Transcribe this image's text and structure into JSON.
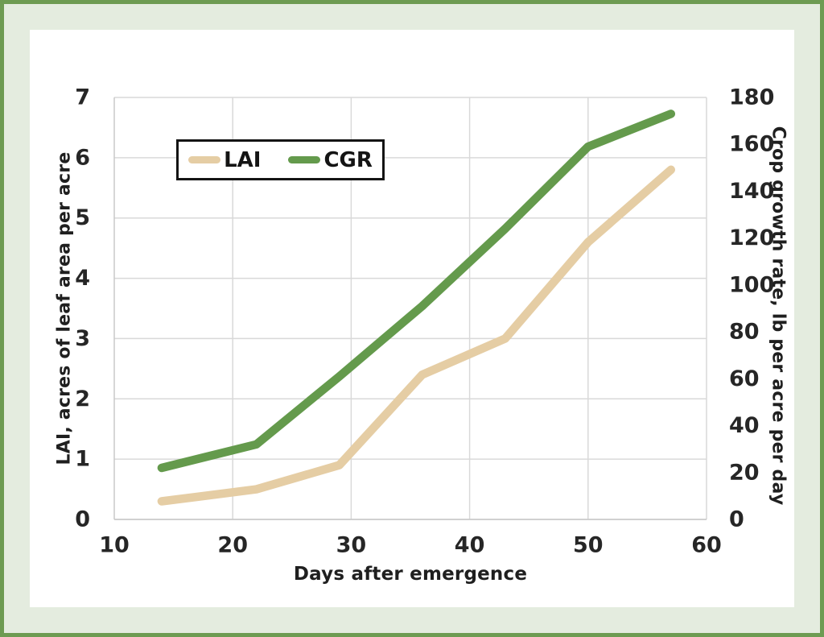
{
  "chart_data": {
    "type": "line",
    "x": [
      14,
      22,
      29,
      36,
      43,
      50,
      57
    ],
    "series": [
      {
        "name": "LAI",
        "axis": "left",
        "color": "#e5cda4",
        "values": [
          0.3,
          0.5,
          0.9,
          2.4,
          3.0,
          4.6,
          5.8
        ]
      },
      {
        "name": "CGR",
        "axis": "right",
        "color": "#649a4c",
        "values": [
          22,
          32,
          61,
          91,
          124,
          159,
          173
        ]
      }
    ],
    "title": "",
    "xlabel": "Days after emergence",
    "ylabel_left": "LAI, acres of leaf area per acre",
    "ylabel_right": "Crop growth rate, lb per acre per day",
    "xlim": [
      10,
      60
    ],
    "ylim_left": [
      0,
      7
    ],
    "ylim_right": [
      0,
      180
    ],
    "x_ticks": [
      10,
      20,
      30,
      40,
      50,
      60
    ],
    "y_ticks_left": [
      0,
      1,
      2,
      3,
      4,
      5,
      6,
      7
    ],
    "y_ticks_right": [
      0,
      20,
      40,
      60,
      80,
      100,
      120,
      140,
      160,
      180
    ],
    "grid": true,
    "legend_position": "inside-top-left"
  },
  "colors": {
    "frame_border": "#6d9b52",
    "mat_background": "#e4ecdf",
    "canvas_background": "#ffffff",
    "gridline": "#d9d9d9",
    "axis_line": "#c8c8c8",
    "tick_text": "#262626"
  }
}
